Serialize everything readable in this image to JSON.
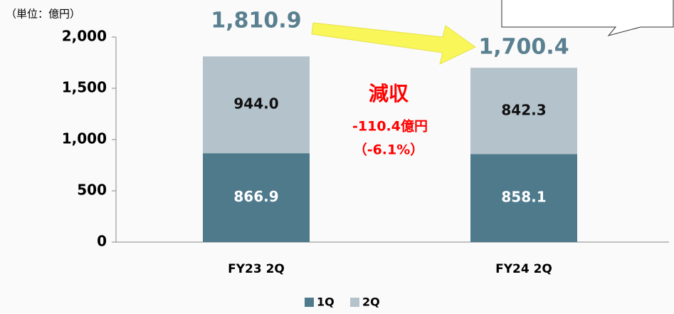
{
  "chart_data": {
    "type": "stacked_bar",
    "unit_label": "（単位：億円）",
    "categories": [
      "FY23 2Q",
      "FY24 2Q"
    ],
    "series": [
      {
        "name": "1Q",
        "color": "#4e7a8c",
        "values": [
          866.9,
          858.1
        ]
      },
      {
        "name": "2Q",
        "color": "#b4c3cb",
        "values": [
          944.0,
          842.3
        ],
        "value_labels": [
          "944.0",
          "842.3"
        ]
      }
    ],
    "totals": [
      {
        "value": 1810.9,
        "label": "1,810.9"
      },
      {
        "value": 1700.4,
        "label": "1,700.4"
      }
    ],
    "annotations": [
      "減収",
      "-110.4億円",
      "（-6.1%）"
    ],
    "ylim": [
      0,
      2000
    ],
    "yticks": [
      0,
      500,
      {
        "value": 1000,
        "label": "1,000"
      },
      {
        "value": 1500,
        "label": "1,500"
      },
      {
        "value": 2000,
        "label": "2,000"
      }
    ]
  }
}
